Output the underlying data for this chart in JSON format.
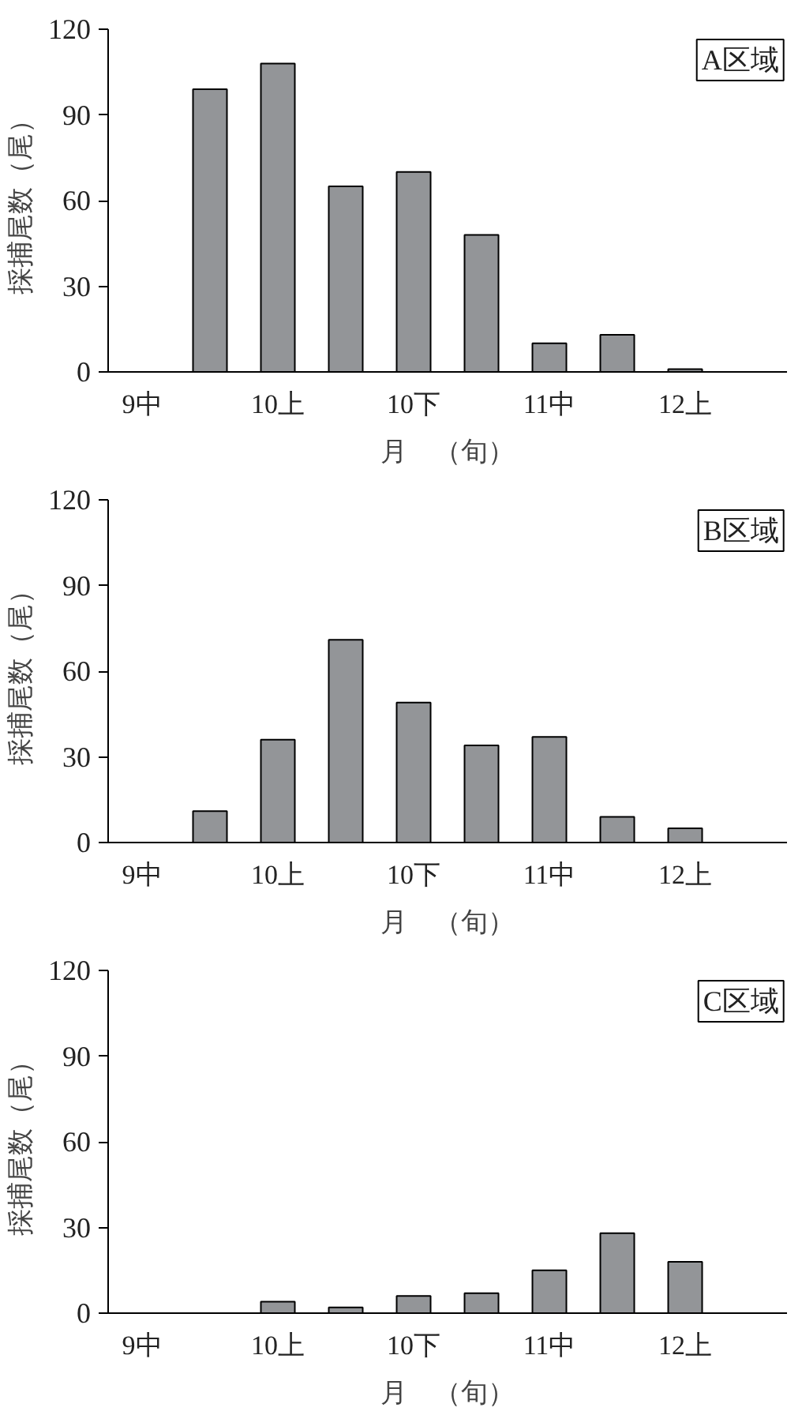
{
  "chart_data": [
    {
      "type": "bar",
      "ylabel": "採捕尾数（尾）",
      "xlabel": "月　（旬）",
      "annotations": [
        "A区域"
      ],
      "categories": [
        "9中",
        null,
        "10上",
        null,
        "10下",
        null,
        "11中",
        null,
        "12上",
        null
      ],
      "values": [
        null,
        99,
        108,
        65,
        70,
        48,
        10,
        13,
        1,
        null
      ],
      "color": "#939598",
      "ylim": [
        0,
        120
      ],
      "yticks": [
        0,
        30,
        60,
        90,
        120
      ],
      "grid": false
    },
    {
      "type": "bar",
      "ylabel": "採捕尾数（尾）",
      "xlabel": "月　（旬）",
      "annotations": [
        "B区域"
      ],
      "categories": [
        "9中",
        null,
        "10上",
        null,
        "10下",
        null,
        "11中",
        null,
        "12上",
        null
      ],
      "values": [
        null,
        11,
        36,
        71,
        49,
        34,
        37,
        9,
        5,
        null
      ],
      "color": "#939598",
      "ylim": [
        0,
        120
      ],
      "yticks": [
        0,
        30,
        60,
        90,
        120
      ],
      "grid": false
    },
    {
      "type": "bar",
      "ylabel": "採捕尾数（尾）",
      "xlabel": "月　（旬）",
      "annotations": [
        "C区域"
      ],
      "categories": [
        "9中",
        null,
        "10上",
        null,
        "10下",
        null,
        "11中",
        null,
        "12上",
        null
      ],
      "values": [
        null,
        null,
        4,
        2,
        6,
        7,
        15,
        28,
        18,
        null
      ],
      "color": "#939598",
      "ylim": [
        0,
        120
      ],
      "yticks": [
        0,
        30,
        60,
        90,
        120
      ],
      "grid": false
    }
  ]
}
